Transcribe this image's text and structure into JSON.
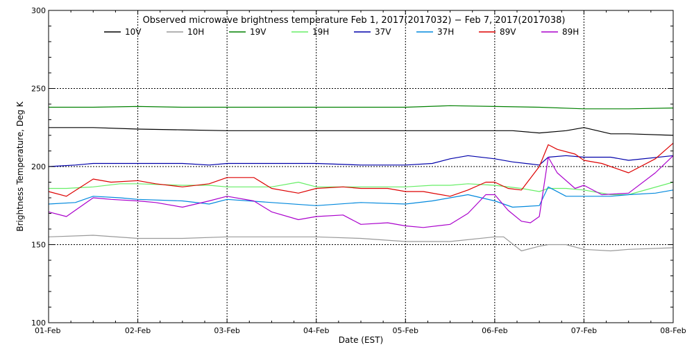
{
  "chart_data": {
    "type": "line",
    "title": "Observed microwave brightness temperature Feb  1, 2017(2017032) − Feb  7, 2017(2017038)",
    "xlabel": "Date (EST)",
    "ylabel": "Brightness Temperature, Deg K",
    "xlim": [
      0,
      7
    ],
    "ylim": [
      100,
      300
    ],
    "grid": true,
    "legend_position": "top",
    "x_tick_labels": [
      "01-Feb",
      "02-Feb",
      "03-Feb",
      "04-Feb",
      "05-Feb",
      "06-Feb",
      "07-Feb",
      "08-Feb"
    ],
    "y_tick_values": [
      100,
      150,
      200,
      250,
      300
    ],
    "y_tick_labels": [
      "100",
      "150",
      "200",
      "250",
      "300"
    ],
    "series": [
      {
        "name": "10V",
        "color": "#000000",
        "x": [
          0,
          0.5,
          1,
          1.5,
          2,
          2.5,
          3,
          3.5,
          4,
          4.5,
          5,
          5.2,
          5.5,
          5.8,
          6.0,
          6.3,
          6.5,
          7
        ],
        "y": [
          225,
          225,
          224,
          223.5,
          223,
          223,
          223,
          223,
          223,
          223,
          223,
          223,
          221.5,
          223,
          225,
          221,
          221,
          220
        ]
      },
      {
        "name": "10H",
        "color": "#999999",
        "x": [
          0,
          0.5,
          1,
          1.5,
          2,
          2.5,
          3,
          3.5,
          4,
          4.5,
          5,
          5.1,
          5.3,
          5.5,
          5.6,
          5.8,
          6.0,
          6.3,
          6.5,
          7
        ],
        "y": [
          155,
          156,
          154,
          154,
          155,
          155,
          155,
          154,
          152,
          152,
          155,
          155,
          146,
          149,
          150,
          150,
          147,
          146,
          147,
          148
        ]
      },
      {
        "name": "19V",
        "color": "#008000",
        "x": [
          0,
          0.5,
          1,
          1.5,
          2,
          2.5,
          3,
          3.5,
          4,
          4.5,
          5,
          5.5,
          6.0,
          6.5,
          7
        ],
        "y": [
          238,
          238,
          238.5,
          238,
          238,
          238,
          238,
          238,
          238,
          239,
          238.5,
          238,
          237,
          237,
          237.5
        ]
      },
      {
        "name": "19H",
        "color": "#66ee66",
        "x": [
          0,
          0.2,
          0.5,
          0.8,
          1,
          1.5,
          1.8,
          2,
          2.5,
          2.8,
          3,
          3.5,
          4,
          4.3,
          4.5,
          4.7,
          5,
          5.3,
          5.5,
          5.6,
          5.8,
          6.0,
          6.3,
          6.5,
          7
        ],
        "y": [
          186,
          186,
          187,
          189,
          189,
          188,
          188,
          187,
          187,
          190,
          187,
          187,
          187,
          188,
          188,
          189,
          188,
          186,
          184,
          186,
          186,
          185,
          182,
          182,
          190
        ]
      },
      {
        "name": "37V",
        "color": "#0000aa",
        "x": [
          0,
          0.3,
          0.5,
          0.8,
          1,
          1.5,
          1.8,
          2,
          2.5,
          3,
          3.5,
          4,
          4.3,
          4.5,
          4.7,
          5,
          5.2,
          5.5,
          5.6,
          5.8,
          6.0,
          6.3,
          6.5,
          7
        ],
        "y": [
          200,
          201,
          202,
          202,
          202,
          202,
          201,
          202,
          202,
          202,
          201,
          201,
          202,
          205,
          207,
          205,
          203,
          201,
          206,
          207,
          206,
          206,
          204,
          207
        ]
      },
      {
        "name": "37H",
        "color": "#0088dd",
        "x": [
          0,
          0.3,
          0.5,
          0.8,
          1,
          1.5,
          1.8,
          2,
          2.5,
          3,
          3.5,
          4,
          4.3,
          4.5,
          4.7,
          5,
          5.2,
          5.5,
          5.6,
          5.8,
          6.0,
          6.3,
          6.5,
          6.8,
          7
        ],
        "y": [
          176,
          177,
          181,
          180,
          179,
          178,
          176,
          179,
          177,
          175,
          177,
          176,
          178,
          180,
          182,
          178,
          174,
          175,
          187,
          181,
          181,
          181,
          182,
          183,
          185
        ]
      },
      {
        "name": "89V",
        "color": "#dd0000",
        "x": [
          0,
          0.2,
          0.5,
          0.7,
          1,
          1.2,
          1.5,
          1.8,
          2,
          2.3,
          2.5,
          2.8,
          3,
          3.3,
          3.5,
          3.8,
          4,
          4.2,
          4.5,
          4.7,
          4.9,
          5,
          5.15,
          5.3,
          5.5,
          5.6,
          5.7,
          5.9,
          6.0,
          6.2,
          6.5,
          6.8,
          7
        ],
        "y": [
          184,
          181,
          192,
          190,
          191,
          189,
          187,
          189,
          193,
          193,
          186,
          183,
          186,
          187,
          186,
          186,
          184,
          184,
          181,
          185,
          190,
          190,
          186,
          185,
          200,
          214,
          211,
          208,
          204,
          202,
          196,
          205,
          215
        ]
      },
      {
        "name": "89H",
        "color": "#aa00cc",
        "x": [
          0,
          0.2,
          0.5,
          0.7,
          1,
          1.2,
          1.5,
          1.8,
          2,
          2.3,
          2.5,
          2.8,
          3,
          3.3,
          3.5,
          3.8,
          4,
          4.2,
          4.5,
          4.7,
          4.9,
          5,
          5.15,
          5.3,
          5.4,
          5.5,
          5.6,
          5.7,
          5.9,
          6.0,
          6.2,
          6.5,
          6.8,
          7
        ],
        "y": [
          171,
          168,
          180,
          179,
          178,
          177,
          174,
          178,
          181,
          178,
          171,
          166,
          168,
          169,
          163,
          164,
          162,
          161,
          163,
          170,
          182,
          182,
          172,
          165,
          164,
          168,
          206,
          196,
          186,
          188,
          182,
          183,
          196,
          207
        ]
      }
    ]
  }
}
